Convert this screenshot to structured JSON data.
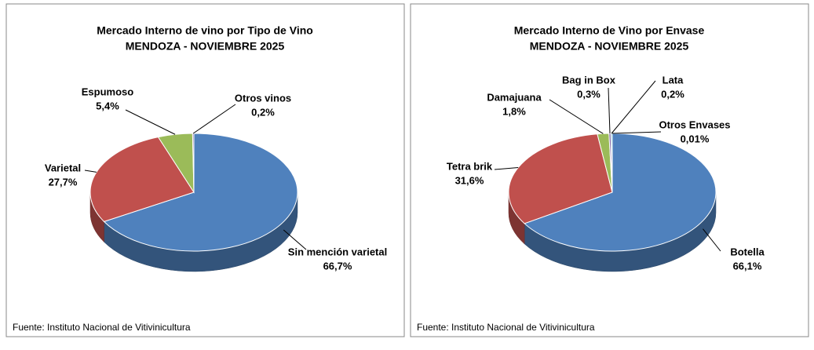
{
  "chart_data": [
    {
      "type": "pie",
      "title": "Mercado Interno de vino por Tipo de Vino",
      "subtitle": "MENDOZA - NOVIEMBRE 2025",
      "categories": [
        "Sin mención varietal",
        "Varietal",
        "Espumoso",
        "Otros vinos"
      ],
      "values": [
        66.7,
        27.7,
        5.4,
        0.2
      ],
      "value_labels": [
        "66,7%",
        "27,7%",
        "5,4%",
        "0,2%"
      ],
      "colors": [
        "#4f81bd",
        "#c0504d",
        "#9bbb59",
        "#8064a2"
      ],
      "source": "Fuente: Instituto Nacional de Vitivinicultura"
    },
    {
      "type": "pie",
      "title": "Mercado Interno de Vino por Envase",
      "subtitle": "MENDOZA - NOVIEMBRE 2025",
      "categories": [
        "Botella",
        "Tetra brik",
        "Damajuana",
        "Bag in Box",
        "Lata",
        "Otros Envases"
      ],
      "values": [
        66.1,
        31.6,
        1.8,
        0.3,
        0.2,
        0.01
      ],
      "value_labels": [
        "66,1%",
        "31,6%",
        "1,8%",
        "0,3%",
        "0,2%",
        "0,01%"
      ],
      "colors": [
        "#4f81bd",
        "#c0504d",
        "#9bbb59",
        "#8064a2",
        "#4bacc6",
        "#f79646"
      ],
      "source": "Fuente: Instituto Nacional de Vitivinicultura"
    }
  ]
}
